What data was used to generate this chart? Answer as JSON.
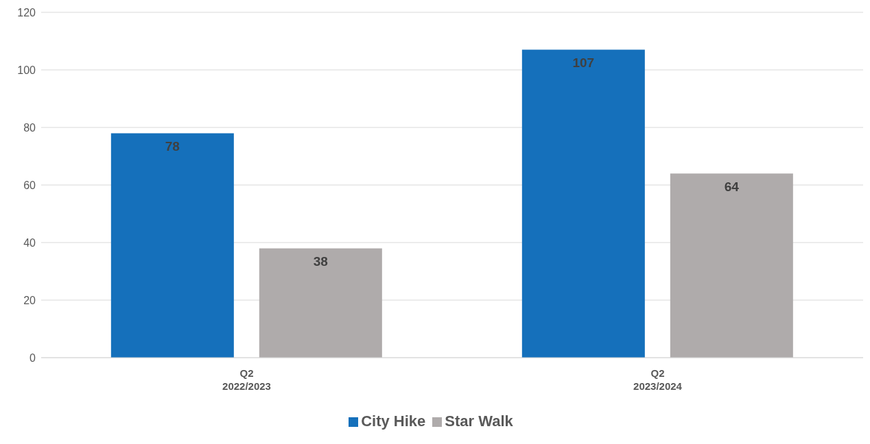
{
  "chart_data": {
    "type": "bar",
    "categories": [
      "Q2\n2022/2023",
      "Q2\n2023/2024"
    ],
    "series": [
      {
        "name": "City Hike",
        "color": "#1570bb",
        "values": [
          78,
          107
        ]
      },
      {
        "name": "Star Walk",
        "color": "#afabab",
        "values": [
          38,
          64
        ]
      }
    ],
    "ylim": [
      0,
      120
    ],
    "yticks": [
      0,
      20,
      40,
      60,
      80,
      100,
      120
    ],
    "grid": "y",
    "legend": "bottom",
    "data_labels": true
  }
}
